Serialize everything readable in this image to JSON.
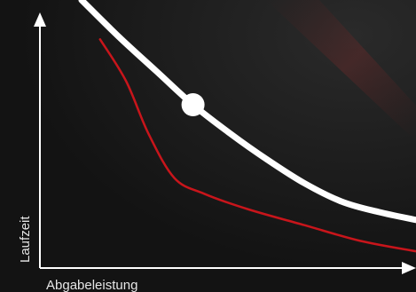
{
  "chart_data": {
    "type": "line",
    "title": "",
    "xlabel": "Abgabeleistung",
    "ylabel": "Laufzeit",
    "axis_ticks": false,
    "grid": false,
    "xlim": [
      0,
      100
    ],
    "ylim": [
      0,
      100
    ],
    "series": [
      {
        "color": "#ffffff",
        "style": "thick",
        "points": [
          [
            10,
            100
          ],
          [
            20,
            86
          ],
          [
            30,
            73
          ],
          [
            40,
            60
          ],
          [
            50,
            49
          ],
          [
            60,
            39
          ],
          [
            70,
            30
          ],
          [
            80,
            23
          ],
          [
            90,
            19
          ],
          [
            100,
            16
          ]
        ]
      },
      {
        "color": "#c8151b",
        "style": "thin",
        "points": [
          [
            15,
            85
          ],
          [
            22,
            69
          ],
          [
            28,
            49
          ],
          [
            35,
            32
          ],
          [
            43,
            26
          ],
          [
            55,
            20
          ],
          [
            70,
            14
          ],
          [
            85,
            8
          ],
          [
            100,
            4
          ]
        ]
      }
    ],
    "highlight_point": {
      "series": 0,
      "x": 40,
      "y": 60,
      "color": "#ffffff"
    },
    "colors": {
      "background": "#161616",
      "axis": "#ffffff",
      "label": "#e6e6e6"
    }
  }
}
